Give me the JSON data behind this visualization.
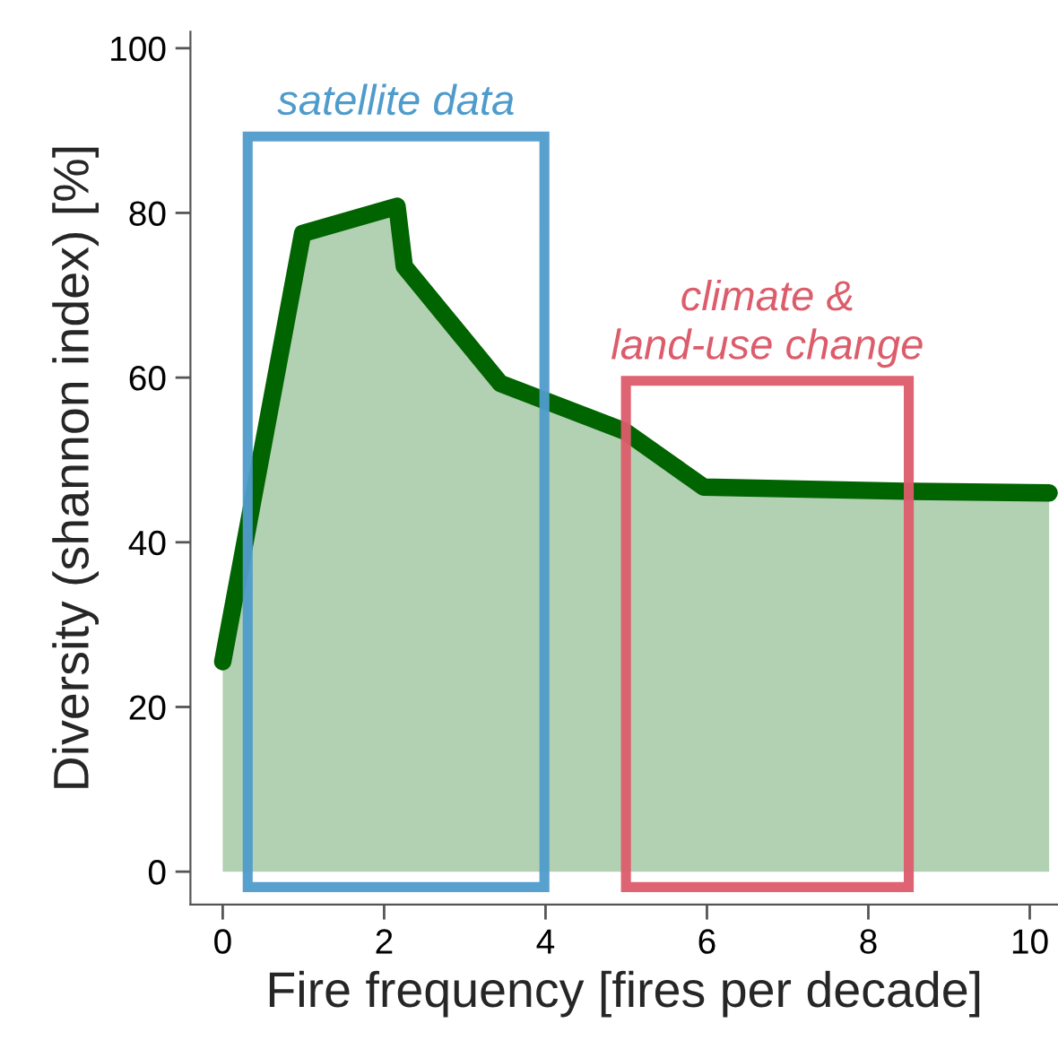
{
  "chart_data": {
    "type": "area",
    "xlabel": "Fire frequency [fires per decade]",
    "ylabel": "Diversity (shannon index) [%]",
    "x": [
      0,
      0.99,
      2.16,
      2.25,
      3.44,
      4.98,
      5.96,
      8.46,
      10.24
    ],
    "series": [
      {
        "color": "#006400",
        "values": [
          25.5,
          77.5,
          80.8,
          73.5,
          59.3,
          53.5,
          46.7,
          46.2,
          46.0
        ]
      }
    ],
    "xlim": [
      -0.4,
      10.35
    ],
    "ylim": [
      -4,
      102
    ],
    "xticks": [
      0,
      2,
      4,
      6,
      8,
      10
    ],
    "yticks": [
      0,
      20,
      40,
      60,
      80,
      100
    ],
    "annotations": [
      "satellite data",
      "climate &\nland-use change"
    ],
    "grid": false,
    "legend": false
  }
}
